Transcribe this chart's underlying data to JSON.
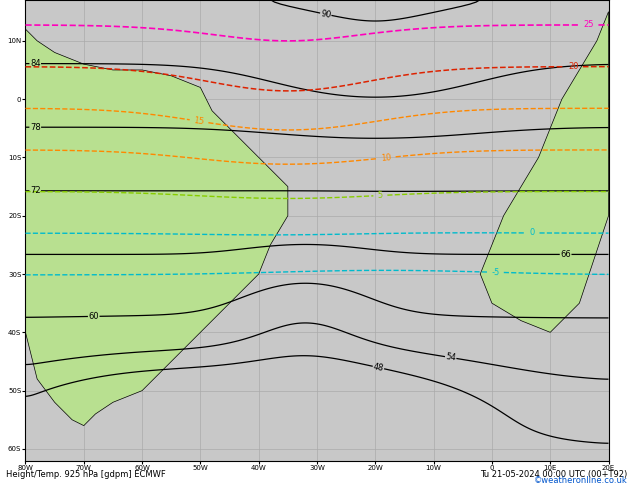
{
  "title_left": "Height/Temp. 925 hPa [gdpm] ECMWF",
  "title_right": "Tu 21-05-2024 00:00 UTC (00+T92)",
  "watermark": "©weatheronline.co.uk",
  "background_ocean": "#c8c8c8",
  "background_land": "#b8e090",
  "grid_color": "#aaaaaa",
  "lon_min": -80,
  "lon_max": 20,
  "lat_min": -62,
  "lat_max": 17,
  "figsize": [
    6.34,
    4.9
  ],
  "dpi": 100,
  "height_color": "black",
  "temp_orange": "#ff8800",
  "temp_red": "#dd2200",
  "temp_magenta": "#ff00bb",
  "temp_cyan": "#00bbcc",
  "temp_yellow_green": "#88cc00"
}
